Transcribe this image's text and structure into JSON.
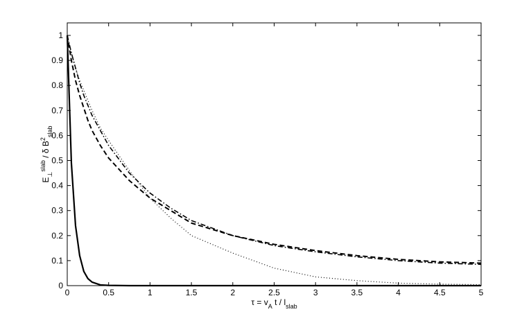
{
  "chart_data": {
    "type": "line",
    "x_label": [
      {
        "text": "τ = v"
      },
      {
        "text": "A",
        "shift": "sub"
      },
      {
        "text": " t / l"
      },
      {
        "text": "slab",
        "shift": "sub"
      }
    ],
    "y_label": [
      {
        "text": "E"
      },
      {
        "text": "⊥",
        "shift": "sub"
      },
      {
        "text": "slab",
        "shift": "super"
      },
      {
        "text": " / δ B"
      },
      {
        "text": "2",
        "shift": "super"
      },
      {
        "text": "slab",
        "shift": "sub"
      }
    ],
    "x": [
      0,
      0.05,
      0.1,
      0.15,
      0.2,
      0.25,
      0.3,
      0.4,
      0.5,
      0.75,
      1,
      1.25,
      1.5,
      2,
      2.5,
      3,
      3.5,
      4,
      4.5,
      5
    ],
    "series": [
      {
        "color": "#000000",
        "dash": "solid",
        "width": 2.2,
        "values": [
          1,
          0.49,
          0.24,
          0.12,
          0.057,
          0.028,
          0.014,
          0.003,
          0.001,
          0,
          0,
          0,
          0,
          0,
          0,
          0,
          0,
          0,
          0,
          0
        ]
      },
      {
        "color": "#000000",
        "dash": "dotted",
        "width": 1.2,
        "values": [
          1,
          0.93,
          0.87,
          0.82,
          0.78,
          0.74,
          0.7,
          0.63,
          0.58,
          0.46,
          0.35,
          0.27,
          0.2,
          0.13,
          0.07,
          0.035,
          0.02,
          0.01,
          0.006,
          0.004
        ]
      },
      {
        "color": "#000000",
        "dash": "dashdot",
        "width": 1.6,
        "values": [
          1,
          0.93,
          0.87,
          0.81,
          0.76,
          0.72,
          0.68,
          0.62,
          0.56,
          0.45,
          0.37,
          0.31,
          0.26,
          0.2,
          0.16,
          0.135,
          0.115,
          0.1,
          0.09,
          0.085
        ]
      },
      {
        "color": "#000000",
        "dash": "dashed",
        "width": 2,
        "values": [
          1,
          0.9,
          0.82,
          0.76,
          0.71,
          0.66,
          0.62,
          0.56,
          0.51,
          0.42,
          0.35,
          0.3,
          0.25,
          0.2,
          0.165,
          0.14,
          0.12,
          0.105,
          0.095,
          0.09
        ]
      }
    ],
    "xlim": [
      0,
      5
    ],
    "ylim": [
      0,
      1.05
    ],
    "xticks": [
      0,
      0.5,
      1,
      1.5,
      2,
      2.5,
      3,
      3.5,
      4,
      4.5,
      5
    ],
    "yticks": [
      0,
      0.1,
      0.2,
      0.3,
      0.4,
      0.5,
      0.6,
      0.7,
      0.8,
      0.9,
      1
    ],
    "grid": false
  }
}
